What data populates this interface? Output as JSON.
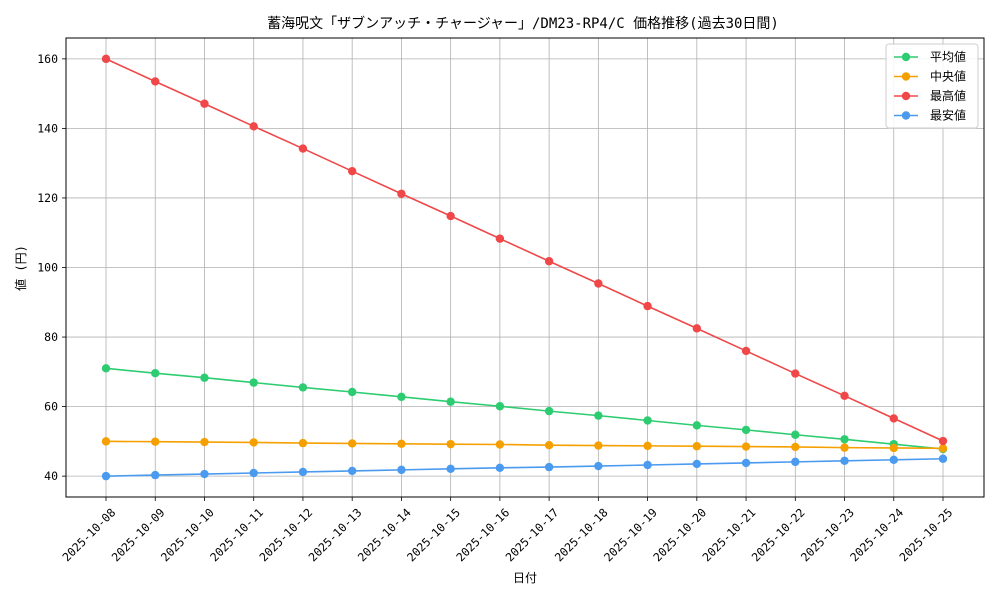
{
  "chart_data": {
    "type": "line",
    "title": "蓄海呪文「ザブンアッチ・チャージャー」/DM23-RP4/C 価格推移(過去30日間)",
    "xlabel": "日付",
    "ylabel": "値 (円)",
    "ylim": [
      34,
      166
    ],
    "yticks": [
      40,
      60,
      80,
      100,
      120,
      140,
      160
    ],
    "grid": true,
    "legend_position": "top-right",
    "categories": [
      "2025-10-08",
      "2025-10-09",
      "2025-10-10",
      "2025-10-11",
      "2025-10-12",
      "2025-10-13",
      "2025-10-14",
      "2025-10-15",
      "2025-10-16",
      "2025-10-17",
      "2025-10-18",
      "2025-10-19",
      "2025-10-20",
      "2025-10-21",
      "2025-10-22",
      "2025-10-23",
      "2025-10-24",
      "2025-10-25"
    ],
    "series": [
      {
        "name": "平均値",
        "color": "#2ecc71",
        "values": [
          71.0,
          69.6,
          68.3,
          66.9,
          65.5,
          64.2,
          62.8,
          61.4,
          60.1,
          58.7,
          57.4,
          56.0,
          54.6,
          53.3,
          51.9,
          50.6,
          49.2,
          47.8
        ]
      },
      {
        "name": "中央値",
        "color": "#f5a000",
        "values": [
          50.0,
          49.9,
          49.8,
          49.7,
          49.5,
          49.4,
          49.3,
          49.2,
          49.1,
          48.9,
          48.8,
          48.7,
          48.6,
          48.5,
          48.4,
          48.2,
          48.1,
          48.0
        ]
      },
      {
        "name": "最高値",
        "color": "#f04848",
        "values": [
          160.0,
          153.5,
          147.1,
          140.6,
          134.2,
          127.7,
          121.2,
          114.8,
          108.3,
          101.8,
          95.4,
          88.9,
          82.5,
          76.0,
          69.5,
          63.1,
          56.6,
          50.1
        ]
      },
      {
        "name": "最安値",
        "color": "#4a9af0",
        "values": [
          40.0,
          40.3,
          40.6,
          40.9,
          41.2,
          41.5,
          41.8,
          42.1,
          42.4,
          42.6,
          42.9,
          43.2,
          43.5,
          43.8,
          44.1,
          44.4,
          44.7,
          45.0
        ]
      }
    ]
  }
}
